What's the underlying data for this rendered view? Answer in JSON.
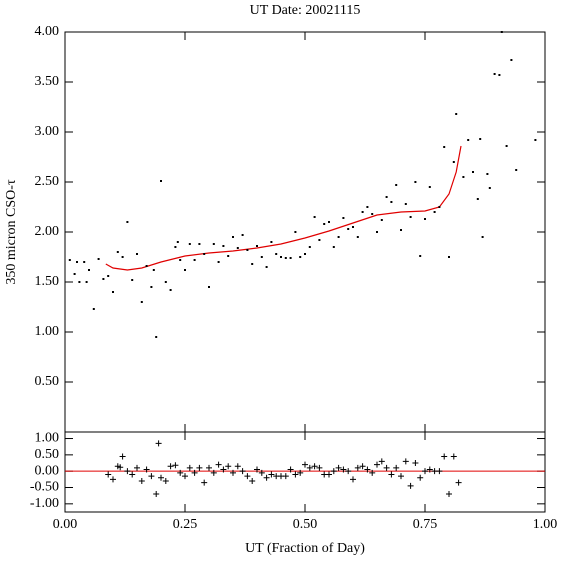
{
  "chart_data": [
    {
      "type": "scatter",
      "title": "UT Date: 20021115",
      "ylabel": "350 micron CSO-τ",
      "xlim": [
        0,
        1
      ],
      "ylim": [
        0,
        4
      ],
      "xticks": [
        0,
        0.25,
        0.5,
        0.75,
        1
      ],
      "yticks": [
        {
          "value": 0.5,
          "label": "0.50"
        },
        {
          "value": 1,
          "label": "1.00"
        },
        {
          "value": 1.5,
          "label": "1.50"
        },
        {
          "value": 2,
          "label": "2.00"
        },
        {
          "value": 2.5,
          "label": "2.50"
        },
        {
          "value": 3,
          "label": "3.00"
        },
        {
          "value": 3.5,
          "label": "3.50"
        },
        {
          "value": 4,
          "label": "4.00"
        }
      ],
      "points": {
        "marker": "dot",
        "color": "#000000",
        "x": [
          0.01,
          0.02,
          0.025,
          0.03,
          0.04,
          0.045,
          0.05,
          0.06,
          0.07,
          0.08,
          0.09,
          0.1,
          0.11,
          0.12,
          0.13,
          0.14,
          0.15,
          0.16,
          0.17,
          0.18,
          0.185,
          0.19,
          0.2,
          0.21,
          0.22,
          0.23,
          0.235,
          0.24,
          0.25,
          0.26,
          0.27,
          0.28,
          0.29,
          0.3,
          0.31,
          0.32,
          0.33,
          0.34,
          0.35,
          0.36,
          0.37,
          0.38,
          0.39,
          0.4,
          0.41,
          0.42,
          0.43,
          0.44,
          0.45,
          0.46,
          0.47,
          0.48,
          0.49,
          0.5,
          0.51,
          0.52,
          0.53,
          0.54,
          0.55,
          0.56,
          0.57,
          0.58,
          0.59,
          0.6,
          0.61,
          0.62,
          0.63,
          0.64,
          0.65,
          0.66,
          0.67,
          0.68,
          0.69,
          0.7,
          0.71,
          0.72,
          0.73,
          0.74,
          0.75,
          0.76,
          0.77,
          0.78,
          0.79,
          0.8,
          0.81,
          0.815,
          0.83,
          0.84,
          0.85,
          0.86,
          0.865,
          0.87,
          0.88,
          0.885,
          0.895,
          0.905,
          0.91,
          0.92,
          0.93,
          0.94,
          0.98
        ],
        "values": [
          1.72,
          1.58,
          1.7,
          1.5,
          1.7,
          1.5,
          1.62,
          1.23,
          1.73,
          1.53,
          1.56,
          1.4,
          1.8,
          1.75,
          2.1,
          1.52,
          1.78,
          1.3,
          1.66,
          1.45,
          1.62,
          0.95,
          2.51,
          1.5,
          1.42,
          1.85,
          1.9,
          1.72,
          1.62,
          1.88,
          1.72,
          1.88,
          1.78,
          1.45,
          1.88,
          1.7,
          1.86,
          1.76,
          1.95,
          1.84,
          1.97,
          1.82,
          1.68,
          1.86,
          1.75,
          1.65,
          1.9,
          1.78,
          1.75,
          1.74,
          1.74,
          2.0,
          1.75,
          1.78,
          1.85,
          2.15,
          1.92,
          2.08,
          2.1,
          1.85,
          1.95,
          2.14,
          2.03,
          2.05,
          1.95,
          2.2,
          2.25,
          2.18,
          2.0,
          2.12,
          2.35,
          2.3,
          2.47,
          2.02,
          2.28,
          2.15,
          2.5,
          1.76,
          2.13,
          2.45,
          2.2,
          2.25,
          2.85,
          1.75,
          2.7,
          3.18,
          2.55,
          2.92,
          2.6,
          2.33,
          2.93,
          1.95,
          2.58,
          2.44,
          3.58,
          3.57,
          4.0,
          2.86,
          3.72,
          2.62,
          2.92
        ]
      },
      "fit": {
        "color": "#e00000",
        "x": [
          0.085,
          0.1,
          0.13,
          0.16,
          0.2,
          0.25,
          0.3,
          0.35,
          0.4,
          0.45,
          0.5,
          0.55,
          0.6,
          0.65,
          0.7,
          0.75,
          0.78,
          0.8,
          0.815,
          0.825
        ],
        "values": [
          1.68,
          1.64,
          1.62,
          1.64,
          1.7,
          1.76,
          1.79,
          1.81,
          1.84,
          1.88,
          1.94,
          2.01,
          2.09,
          2.17,
          2.2,
          2.21,
          2.25,
          2.38,
          2.6,
          2.86
        ]
      }
    },
    {
      "type": "scatter",
      "xlabel": "UT (Fraction of Day)",
      "xlim": [
        0,
        1
      ],
      "ylim": [
        -1.25,
        1.2
      ],
      "xticks": [
        {
          "value": 0,
          "label": "0.00"
        },
        {
          "value": 0.25,
          "label": "0.25"
        },
        {
          "value": 0.5,
          "label": "0.50"
        },
        {
          "value": 0.75,
          "label": "0.75"
        },
        {
          "value": 1,
          "label": "1.00"
        }
      ],
      "yticks": [
        {
          "value": -1,
          "label": "-1.00"
        },
        {
          "value": -0.5,
          "label": "-0.50"
        },
        {
          "value": 0,
          "label": "0.00"
        },
        {
          "value": 0.5,
          "label": "0.50"
        },
        {
          "value": 1,
          "label": "1.00"
        }
      ],
      "reference_line": {
        "value": 0,
        "color": "#e00000"
      },
      "points": {
        "marker": "plus",
        "color": "#000000",
        "x": [
          0.09,
          0.1,
          0.11,
          0.115,
          0.12,
          0.13,
          0.14,
          0.15,
          0.16,
          0.17,
          0.18,
          0.19,
          0.195,
          0.2,
          0.21,
          0.22,
          0.23,
          0.24,
          0.25,
          0.26,
          0.27,
          0.28,
          0.29,
          0.3,
          0.31,
          0.32,
          0.33,
          0.34,
          0.35,
          0.36,
          0.37,
          0.38,
          0.39,
          0.4,
          0.41,
          0.42,
          0.43,
          0.44,
          0.45,
          0.46,
          0.47,
          0.48,
          0.49,
          0.5,
          0.51,
          0.52,
          0.53,
          0.54,
          0.55,
          0.56,
          0.57,
          0.58,
          0.59,
          0.6,
          0.61,
          0.62,
          0.63,
          0.64,
          0.65,
          0.66,
          0.67,
          0.68,
          0.69,
          0.7,
          0.71,
          0.72,
          0.73,
          0.74,
          0.75,
          0.76,
          0.77,
          0.78,
          0.79,
          0.8,
          0.81,
          0.82
        ],
        "values": [
          -0.1,
          -0.25,
          0.15,
          0.12,
          0.45,
          0.0,
          -0.1,
          0.1,
          -0.3,
          0.05,
          -0.15,
          -0.7,
          0.85,
          -0.2,
          -0.3,
          0.15,
          0.18,
          -0.05,
          -0.15,
          0.1,
          -0.05,
          0.1,
          -0.35,
          0.1,
          -0.05,
          0.2,
          0.05,
          0.15,
          -0.05,
          0.15,
          0.0,
          -0.15,
          -0.3,
          0.05,
          -0.05,
          -0.2,
          -0.1,
          -0.15,
          -0.15,
          -0.15,
          0.05,
          -0.1,
          -0.05,
          0.2,
          0.1,
          0.15,
          0.1,
          -0.1,
          -0.1,
          0.0,
          0.1,
          0.05,
          0.0,
          -0.25,
          0.1,
          0.15,
          0.05,
          -0.05,
          0.2,
          0.3,
          0.1,
          -0.1,
          0.1,
          -0.15,
          0.3,
          -0.45,
          0.25,
          -0.2,
          0.0,
          0.05,
          0.0,
          0.0,
          0.45,
          -0.7,
          0.45,
          -0.35
        ]
      }
    }
  ]
}
